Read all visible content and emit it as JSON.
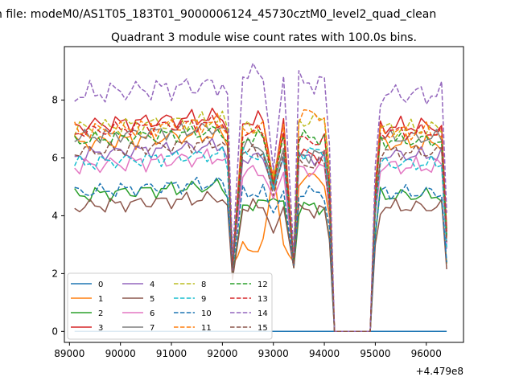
{
  "figure": {
    "suptitle": "n file: modeM0/AS1T05_183T01_9000006124_45730cztM0_level2_quad_clean",
    "title": "Quadrant 3 module wise count rates with 100.0s bins.",
    "x_offset_label": "+4.479e8"
  },
  "colors": [
    "#1f77b4",
    "#ff7f0e",
    "#2ca02c",
    "#d62728",
    "#9467bd",
    "#8c564b",
    "#e377c2",
    "#7f7f7f",
    "#bcbd22",
    "#17becf",
    "#1f77b4",
    "#ff7f0e",
    "#2ca02c",
    "#d62728",
    "#9467bd",
    "#8c564b"
  ],
  "chart_data": {
    "type": "line",
    "title": "Quadrant 3 module wise count rates with 100.0s bins.",
    "xlabel": "",
    "ylabel": "",
    "x_offset": 447900000,
    "xlim": [
      88900,
      96730
    ],
    "ylim": [
      -0.38,
      9.85
    ],
    "xticks": [
      89000,
      90000,
      91000,
      92000,
      93000,
      94000,
      95000,
      96000
    ],
    "xtick_labels": [
      "89000",
      "90000",
      "91000",
      "92000",
      "93000",
      "94000",
      "95000",
      "96000"
    ],
    "yticks": [
      0,
      2,
      4,
      6,
      8
    ],
    "ytick_labels": [
      "0",
      "2",
      "4",
      "6",
      "8"
    ],
    "grid": false,
    "legend": {
      "placement": "lower-left",
      "columns": 4
    },
    "gap_x_range": [
      94200,
      94900
    ],
    "series": [
      {
        "name": "0",
        "style": "solid",
        "flat": 0
      },
      {
        "name": "1",
        "style": "solid",
        "base": 6.5,
        "amp": 0.35,
        "dips": [
          2.3,
          2.9,
          5.6,
          2.4,
          5.3
        ],
        "phase": 1
      },
      {
        "name": "2",
        "style": "solid",
        "base": 4.7,
        "amp": 0.3,
        "dips": [
          1.9,
          4.4,
          4.6,
          2.2,
          4.3
        ],
        "phase": 2
      },
      {
        "name": "3",
        "style": "solid",
        "base": 7.1,
        "amp": 0.35,
        "dips": [
          2.2,
          7.3,
          5.2,
          2.3,
          6.1
        ],
        "phase": 3
      },
      {
        "name": "4",
        "style": "solid",
        "base": 6.1,
        "amp": 0.3,
        "dips": [
          2.1,
          6.0,
          4.9,
          2.3,
          6.0
        ],
        "phase": 4
      },
      {
        "name": "5",
        "style": "solid",
        "base": 4.3,
        "amp": 0.3,
        "dips": [
          1.8,
          4.3,
          3.4,
          2.2,
          4.2
        ],
        "phase": 5
      },
      {
        "name": "6",
        "style": "solid",
        "base": 5.7,
        "amp": 0.35,
        "dips": [
          2.2,
          5.5,
          4.6,
          2.3,
          5.6
        ],
        "phase": 6
      },
      {
        "name": "7",
        "style": "solid",
        "base": 6.7,
        "amp": 0.3,
        "dips": [
          2.3,
          6.4,
          5.0,
          2.4,
          6.1
        ],
        "phase": 7
      },
      {
        "name": "8",
        "style": "dashed",
        "base": 7.0,
        "amp": 0.35,
        "dips": [
          2.4,
          7.0,
          5.3,
          2.5,
          7.3
        ],
        "phase": 8
      },
      {
        "name": "9",
        "style": "dashed",
        "base": 5.8,
        "amp": 0.3,
        "dips": [
          2.3,
          6.1,
          4.9,
          2.4,
          6.2
        ],
        "phase": 9
      },
      {
        "name": "10",
        "style": "dashed",
        "base": 4.8,
        "amp": 0.3,
        "dips": [
          2.2,
          4.8,
          4.1,
          2.3,
          4.8
        ],
        "phase": 10
      },
      {
        "name": "11",
        "style": "dashed",
        "base": 6.9,
        "amp": 0.35,
        "dips": [
          2.4,
          7.0,
          5.2,
          2.5,
          7.5
        ],
        "phase": 11
      },
      {
        "name": "12",
        "style": "dashed",
        "base": 6.6,
        "amp": 0.3,
        "dips": [
          2.4,
          6.7,
          5.1,
          2.4,
          6.7
        ],
        "phase": 12
      },
      {
        "name": "13",
        "style": "dashed",
        "base": 6.9,
        "amp": 0.3,
        "dips": [
          2.3,
          6.9,
          5.1,
          2.4,
          6.6
        ],
        "phase": 13
      },
      {
        "name": "14",
        "style": "dashed",
        "base": 8.2,
        "amp": 0.45,
        "dips": [
          2.6,
          8.9,
          5.6,
          2.7,
          8.6
        ],
        "phase": 14
      },
      {
        "name": "15",
        "style": "dashed",
        "base": 6.2,
        "amp": 0.3,
        "dips": [
          2.2,
          6.2,
          4.7,
          2.3,
          5.8
        ],
        "phase": 15
      }
    ]
  }
}
